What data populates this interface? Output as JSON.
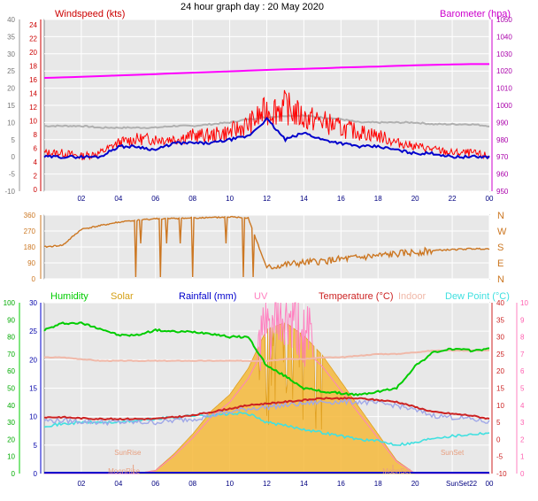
{
  "page_title": "24 hour graph day : 20 May 2020",
  "colors": {
    "windspeed": "#ff0000",
    "gust": "#ff2020",
    "avg_wind": "#0000cc",
    "barometer": "#ff00ff",
    "baro_trend": "#b0b0b0",
    "direction": "#cc7722",
    "humidity": "#00cc00",
    "solar": "#f4b83a",
    "rainfall": "#0000cc",
    "uv": "#ff80c0",
    "temperature": "#cc2222",
    "indoor": "#f0b8a8",
    "dewpoint": "#40e0e0",
    "plot_bg": "#e8e8e8"
  },
  "chart_data": [
    {
      "type": "line",
      "name": "wind-barometer",
      "left_label": "Windspeed (kts)",
      "right_label": "Barometer (hpa)",
      "x_ticks": [
        "02",
        "04",
        "06",
        "08",
        "10",
        "12",
        "14",
        "16",
        "18",
        "20",
        "22",
        "00"
      ],
      "y_left_ticks": [
        "-10",
        "-5",
        "0",
        "5",
        "10",
        "15",
        "20",
        "25",
        "30",
        "35",
        "40"
      ],
      "y_left_ticks_red": [
        "0",
        "2",
        "4",
        "6",
        "8",
        "10",
        "12",
        "14",
        "16",
        "18",
        "20",
        "22",
        "24"
      ],
      "y_right_ticks": [
        "950",
        "960",
        "970",
        "980",
        "990",
        "1000",
        "1010",
        "1020",
        "1030",
        "1040",
        "1050"
      ],
      "ylim_left": [
        -10,
        40
      ],
      "ylim_right": [
        950,
        1050
      ],
      "x": [
        0,
        1,
        2,
        3,
        4,
        5,
        6,
        7,
        8,
        9,
        10,
        11,
        12,
        13,
        14,
        15,
        16,
        17,
        18,
        19,
        20,
        21,
        22,
        23,
        24
      ],
      "series": [
        {
          "key": "gust",
          "values": [
            1,
            1,
            0,
            1,
            4,
            5,
            5,
            5,
            6,
            6,
            7,
            9,
            13,
            14,
            11,
            10,
            8,
            7,
            6,
            4,
            3,
            2,
            1,
            1,
            0
          ]
        },
        {
          "key": "avg_wind",
          "values": [
            0,
            0,
            0,
            0,
            3,
            3,
            2,
            4,
            4,
            4,
            5,
            6,
            11,
            5,
            7,
            5,
            4,
            3,
            3,
            2,
            1,
            1,
            0,
            0,
            0
          ]
        },
        {
          "key": "baro_trend",
          "values": [
            988,
            988,
            988,
            987,
            987,
            987,
            987,
            988,
            988,
            989,
            990,
            992,
            993,
            994,
            994,
            993,
            992,
            990,
            990,
            990,
            990,
            989,
            989,
            989,
            988
          ]
        },
        {
          "key": "barometer",
          "values": [
            1016,
            1016.3,
            1016.6,
            1017,
            1017.4,
            1017.8,
            1018.2,
            1018.6,
            1019,
            1019.4,
            1019.8,
            1020.2,
            1020.6,
            1021,
            1021.3,
            1021.6,
            1022,
            1022.3,
            1022.6,
            1023,
            1023.3,
            1023.6,
            1023.8,
            1024,
            1024
          ]
        }
      ]
    },
    {
      "type": "line",
      "name": "wind-direction",
      "y_left_ticks": [
        "0",
        "90",
        "180",
        "270",
        "360"
      ],
      "compass": [
        "N",
        "W",
        "S",
        "E",
        "N"
      ],
      "ylim": [
        0,
        360
      ],
      "x": [
        0,
        1,
        2,
        3,
        4,
        5,
        6,
        7,
        8,
        9,
        10,
        11,
        12,
        13,
        14,
        15,
        16,
        17,
        18,
        19,
        20,
        21,
        22,
        23,
        24
      ],
      "series": [
        {
          "key": "direction",
          "values": [
            180,
            190,
            280,
            300,
            320,
            330,
            340,
            340,
            345,
            345,
            350,
            345,
            60,
            80,
            90,
            100,
            110,
            120,
            130,
            140,
            150,
            160,
            165,
            170,
            170
          ]
        }
      ]
    },
    {
      "type": "line",
      "name": "weather-combo",
      "legend": [
        "Humidity",
        "Solar",
        "Rainfall (mm)",
        "UV",
        "Temperature (°C)",
        "Indoor",
        "Dew Point (°C)"
      ],
      "x_ticks": [
        "02",
        "04",
        "06",
        "08",
        "10",
        "12",
        "14",
        "16",
        "18",
        "20",
        "22",
        "00"
      ],
      "y_humidity_ticks": [
        "0",
        "10",
        "20",
        "30",
        "40",
        "50",
        "60",
        "70",
        "80",
        "90",
        "100"
      ],
      "y_rain_ticks": [
        "0",
        "5",
        "10",
        "15",
        "20",
        "25",
        "30"
      ],
      "y_temp_ticks": [
        "-10",
        "-5",
        "0",
        "5",
        "10",
        "15",
        "20",
        "25",
        "30",
        "35",
        "40"
      ],
      "y_uv_ticks": [
        "0",
        "1",
        "2",
        "3",
        "4",
        "5",
        "6",
        "7",
        "8",
        "9",
        "10"
      ],
      "annotations": [
        "SunRise",
        "MoonRise",
        "SunSet",
        "MoonSet",
        "SunSet22"
      ],
      "x": [
        0,
        1,
        2,
        3,
        4,
        5,
        6,
        7,
        8,
        9,
        10,
        11,
        12,
        13,
        14,
        15,
        16,
        17,
        18,
        19,
        20,
        21,
        22,
        23,
        24
      ],
      "series": [
        {
          "key": "humidity",
          "values": [
            84,
            88,
            88,
            85,
            81,
            81,
            84,
            83,
            83,
            82,
            80,
            80,
            63,
            57,
            50,
            48,
            47,
            46,
            48,
            50,
            63,
            71,
            73,
            72,
            73
          ]
        },
        {
          "key": "solar",
          "values": [
            0,
            0,
            0,
            0,
            0,
            0,
            5,
            30,
            60,
            95,
            120,
            160,
            220,
            230,
            210,
            180,
            140,
            100,
            60,
            20,
            0,
            0,
            0,
            0,
            0
          ]
        },
        {
          "key": "temperature",
          "values": [
            6.5,
            6.5,
            6.2,
            6,
            6,
            6,
            6,
            6.5,
            7,
            8,
            9,
            10,
            10.5,
            11,
            11.5,
            12,
            12,
            12,
            11.5,
            11,
            9.5,
            8,
            7.5,
            7,
            6
          ]
        },
        {
          "key": "indoor",
          "values": [
            24,
            24,
            23.5,
            23,
            23,
            23,
            23,
            23,
            23,
            23,
            23,
            23,
            23,
            23.5,
            23.5,
            24,
            24,
            24.5,
            25,
            25,
            25.5,
            26,
            26,
            26,
            26
          ]
        },
        {
          "key": "dewpoint",
          "values": [
            4,
            4.5,
            5,
            5,
            5,
            5.5,
            6,
            6.5,
            7,
            7,
            7.5,
            7.5,
            5,
            4,
            3,
            2,
            1,
            0,
            -0.5,
            -1.5,
            -1,
            0.5,
            1,
            1.5,
            2
          ]
        },
        {
          "key": "rain_total",
          "values": [
            0,
            0,
            0,
            0,
            0,
            0,
            0,
            0,
            0,
            0,
            0,
            0,
            0,
            0,
            0,
            0,
            0,
            0,
            0,
            0,
            0,
            0,
            0,
            0,
            0
          ]
        }
      ]
    }
  ]
}
